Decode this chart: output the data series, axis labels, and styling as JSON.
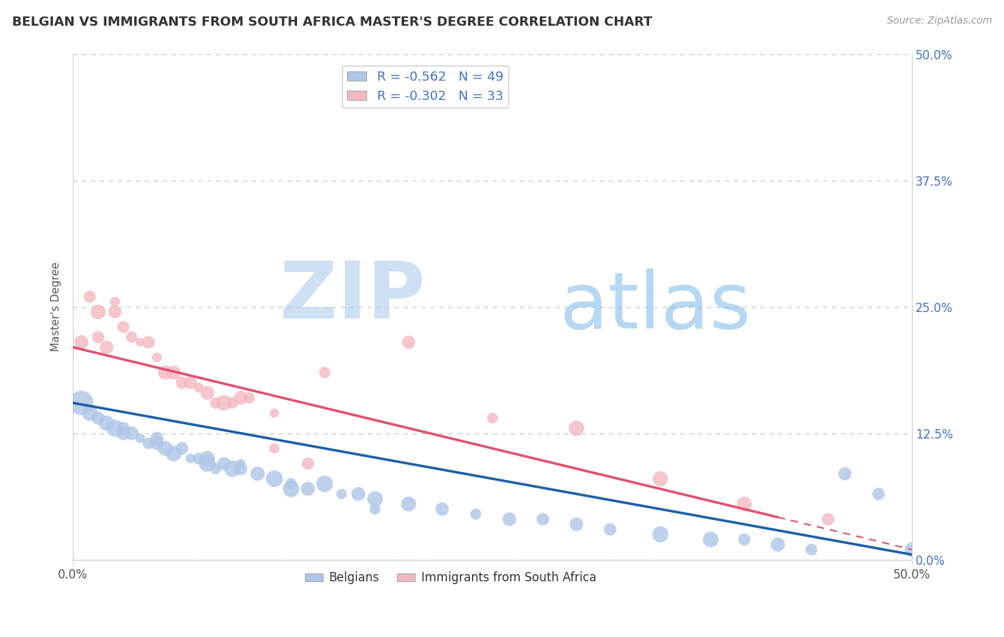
{
  "title": "BELGIAN VS IMMIGRANTS FROM SOUTH AFRICA MASTER'S DEGREE CORRELATION CHART",
  "source_text": "Source: ZipAtlas.com",
  "ylabel": "Master's Degree",
  "xlim": [
    0.0,
    0.5
  ],
  "ylim": [
    0.0,
    0.5
  ],
  "ytick_vals": [
    0.0,
    0.125,
    0.25,
    0.375,
    0.5
  ],
  "grid_color": "#c8c8c8",
  "background_color": "#ffffff",
  "watermark_zip": "ZIP",
  "watermark_atlas": "atlas",
  "belgians_color": "#aec6e8",
  "immigrants_color": "#f4b8c1",
  "belgians_line_color": "#1a5fa8",
  "immigrants_line_color": "#e05070",
  "legend_R1": "-0.562",
  "legend_N1": "49",
  "legend_R2": "-0.302",
  "legend_N2": "33",
  "belgians_x": [
    0.005,
    0.01,
    0.015,
    0.02,
    0.025,
    0.03,
    0.035,
    0.04,
    0.045,
    0.05,
    0.055,
    0.06,
    0.065,
    0.07,
    0.075,
    0.08,
    0.085,
    0.09,
    0.095,
    0.1,
    0.11,
    0.12,
    0.13,
    0.14,
    0.15,
    0.16,
    0.17,
    0.18,
    0.2,
    0.22,
    0.24,
    0.26,
    0.28,
    0.3,
    0.32,
    0.35,
    0.38,
    0.4,
    0.42,
    0.44,
    0.46,
    0.48,
    0.5,
    0.03,
    0.05,
    0.08,
    0.1,
    0.13,
    0.18
  ],
  "belgians_y": [
    0.155,
    0.145,
    0.14,
    0.135,
    0.13,
    0.125,
    0.125,
    0.12,
    0.115,
    0.115,
    0.11,
    0.105,
    0.11,
    0.1,
    0.1,
    0.095,
    0.09,
    0.095,
    0.09,
    0.095,
    0.085,
    0.08,
    0.075,
    0.07,
    0.075,
    0.065,
    0.065,
    0.06,
    0.055,
    0.05,
    0.045,
    0.04,
    0.04,
    0.035,
    0.03,
    0.025,
    0.02,
    0.02,
    0.015,
    0.01,
    0.085,
    0.065,
    0.01,
    0.13,
    0.12,
    0.1,
    0.09,
    0.07,
    0.05
  ],
  "belgians_sizes": [
    500,
    120,
    120,
    120,
    120,
    120,
    120,
    120,
    120,
    120,
    120,
    120,
    120,
    120,
    120,
    120,
    120,
    120,
    120,
    120,
    120,
    120,
    120,
    120,
    120,
    120,
    120,
    120,
    120,
    120,
    120,
    120,
    120,
    120,
    120,
    120,
    120,
    120,
    120,
    120,
    120,
    120,
    120,
    120,
    120,
    120,
    120,
    120,
    120
  ],
  "immigrants_x": [
    0.005,
    0.01,
    0.015,
    0.02,
    0.025,
    0.03,
    0.04,
    0.05,
    0.06,
    0.07,
    0.08,
    0.09,
    0.1,
    0.12,
    0.15,
    0.2,
    0.25,
    0.3,
    0.35,
    0.4,
    0.45,
    0.015,
    0.025,
    0.035,
    0.045,
    0.055,
    0.065,
    0.075,
    0.085,
    0.095,
    0.105,
    0.12,
    0.14
  ],
  "immigrants_y": [
    0.215,
    0.26,
    0.22,
    0.21,
    0.245,
    0.23,
    0.215,
    0.2,
    0.185,
    0.175,
    0.165,
    0.155,
    0.16,
    0.145,
    0.185,
    0.215,
    0.14,
    0.13,
    0.08,
    0.055,
    0.04,
    0.245,
    0.255,
    0.22,
    0.215,
    0.185,
    0.175,
    0.17,
    0.155,
    0.155,
    0.16,
    0.11,
    0.095
  ],
  "immigrants_sizes": [
    120,
    120,
    120,
    120,
    120,
    120,
    120,
    120,
    120,
    120,
    120,
    120,
    120,
    120,
    120,
    120,
    120,
    120,
    120,
    120,
    120,
    120,
    120,
    120,
    120,
    120,
    120,
    120,
    120,
    120,
    120,
    120,
    120
  ],
  "line_b_x0": 0.0,
  "line_b_y0": 0.155,
  "line_b_x1": 0.5,
  "line_b_y1": 0.005,
  "line_i_x0": 0.0,
  "line_i_y0": 0.21,
  "line_i_x1": 0.5,
  "line_i_y1": 0.01,
  "line_i_solid_end": 0.42
}
